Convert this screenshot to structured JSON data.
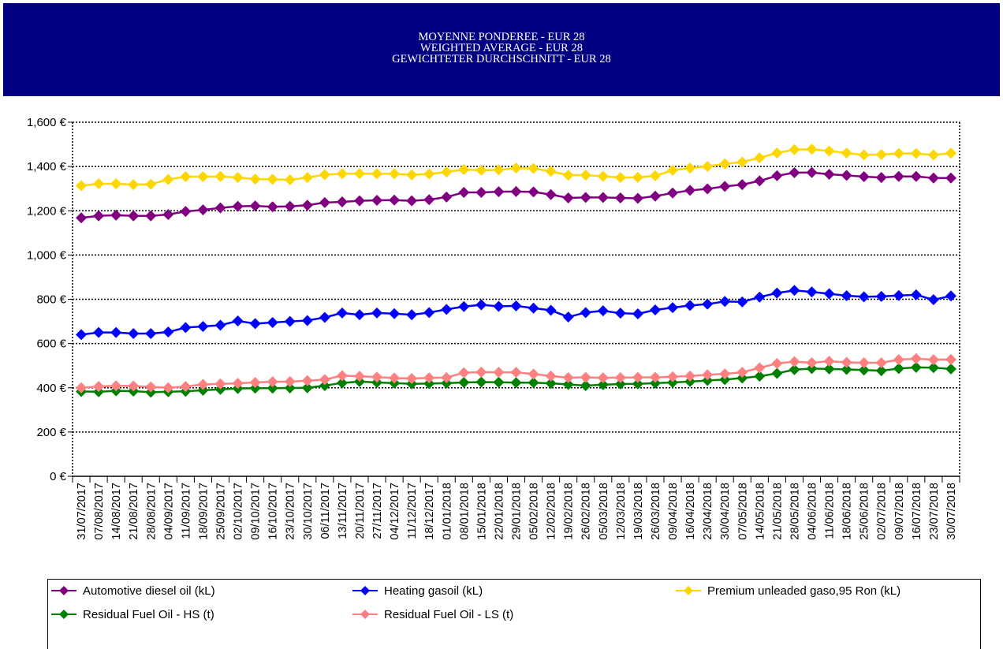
{
  "header": {
    "lines": [
      "MOYENNE PONDEREE - EUR 28",
      "WEIGHTED AVERAGE - EUR 28",
      "GEWICHTETER DURCHSCHNITT - EUR 28"
    ],
    "background": "#000080"
  },
  "chart_data": {
    "type": "line",
    "ylim": [
      0,
      1600
    ],
    "yticks": [
      0,
      200,
      400,
      600,
      800,
      1000,
      1200,
      1400,
      1600
    ],
    "ytick_labels": [
      "0 €",
      "200 €",
      "400 €",
      "600 €",
      "800 €",
      "1,000 €",
      "1,200 €",
      "1,400 €",
      "1,600 €"
    ],
    "grid": true,
    "legend_position": "bottom",
    "x": [
      "31/07/2017",
      "07/08/2017",
      "14/08/2017",
      "21/08/2017",
      "28/08/2017",
      "04/09/2017",
      "11/09/2017",
      "18/09/2017",
      "25/09/2017",
      "02/10/2017",
      "09/10/2017",
      "16/10/2017",
      "23/10/2017",
      "30/10/2017",
      "06/11/2017",
      "13/11/2017",
      "20/11/2017",
      "27/11/2017",
      "04/12/2017",
      "11/12/2017",
      "18/12/2017",
      "01/01/2018",
      "08/01/2018",
      "15/01/2018",
      "22/01/2018",
      "29/01/2018",
      "05/02/2018",
      "12/02/2018",
      "19/02/2018",
      "26/02/2018",
      "05/03/2018",
      "12/03/2018",
      "19/03/2018",
      "26/03/2018",
      "09/04/2018",
      "16/04/2018",
      "23/04/2018",
      "30/04/2018",
      "07/05/2018",
      "14/05/2018",
      "21/05/2018",
      "28/05/2018",
      "04/06/2018",
      "11/06/2018",
      "18/06/2018",
      "25/06/2018",
      "02/07/2018",
      "09/07/2018",
      "16/07/2018",
      "23/07/2018",
      "30/07/2018"
    ],
    "series": [
      {
        "name": "Automotive diesel oil (kL)",
        "color": "#800080",
        "values": [
          1168,
          1177,
          1180,
          1177,
          1177,
          1183,
          1197,
          1204,
          1213,
          1220,
          1222,
          1218,
          1220,
          1225,
          1237,
          1240,
          1245,
          1247,
          1248,
          1245,
          1250,
          1262,
          1283,
          1283,
          1286,
          1287,
          1285,
          1273,
          1258,
          1260,
          1260,
          1258,
          1256,
          1266,
          1280,
          1292,
          1299,
          1310,
          1318,
          1335,
          1358,
          1372,
          1373,
          1365,
          1360,
          1354,
          1350,
          1355,
          1355,
          1348,
          1348
        ]
      },
      {
        "name": "Heating gasoil (kL)",
        "color": "#0000ff",
        "values": [
          640,
          650,
          650,
          645,
          645,
          652,
          672,
          677,
          683,
          702,
          690,
          695,
          700,
          704,
          718,
          738,
          730,
          738,
          735,
          730,
          740,
          754,
          767,
          775,
          768,
          770,
          760,
          750,
          720,
          740,
          748,
          737,
          734,
          752,
          762,
          772,
          778,
          790,
          788,
          810,
          828,
          840,
          833,
          825,
          816,
          811,
          813,
          817,
          820,
          798,
          815
        ]
      },
      {
        "name": "Premium unleaded gaso,95 Ron (kL)",
        "color": "#ffd700",
        "values": [
          1313,
          1322,
          1322,
          1318,
          1320,
          1341,
          1354,
          1354,
          1355,
          1350,
          1343,
          1342,
          1340,
          1350,
          1363,
          1367,
          1368,
          1367,
          1367,
          1362,
          1366,
          1375,
          1386,
          1383,
          1385,
          1393,
          1391,
          1378,
          1361,
          1361,
          1356,
          1350,
          1351,
          1358,
          1383,
          1393,
          1400,
          1412,
          1420,
          1439,
          1461,
          1476,
          1478,
          1470,
          1461,
          1452,
          1454,
          1459,
          1459,
          1452,
          1460
        ]
      },
      {
        "name": "Residual Fuel Oil - HS (t)",
        "color": "#008000",
        "values": [
          383,
          382,
          386,
          385,
          380,
          382,
          384,
          389,
          393,
          397,
          398,
          398,
          399,
          400,
          410,
          422,
          428,
          424,
          421,
          418,
          419,
          421,
          424,
          426,
          425,
          423,
          423,
          420,
          415,
          410,
          414,
          417,
          418,
          421,
          424,
          428,
          433,
          437,
          444,
          452,
          465,
          482,
          487,
          485,
          483,
          480,
          477,
          487,
          492,
          491,
          485
        ]
      },
      {
        "name": "Residual Fuel Oil - LS (t)",
        "color": "#ff8080",
        "values": [
          400,
          406,
          409,
          408,
          404,
          400,
          406,
          415,
          418,
          420,
          424,
          427,
          428,
          432,
          437,
          455,
          452,
          448,
          444,
          442,
          445,
          446,
          468,
          471,
          470,
          470,
          462,
          453,
          446,
          447,
          445,
          446,
          447,
          447,
          450,
          453,
          459,
          463,
          470,
          490,
          510,
          518,
          513,
          520,
          515,
          513,
          513,
          527,
          532,
          527,
          528
        ]
      }
    ]
  },
  "legend": {
    "items": [
      {
        "label": "Automotive diesel oil (kL)",
        "color": "#800080"
      },
      {
        "label": "Heating gasoil (kL)",
        "color": "#0000ff"
      },
      {
        "label": "Premium unleaded gaso,95 Ron (kL)",
        "color": "#ffd700"
      },
      {
        "label": "Residual Fuel Oil - HS (t)",
        "color": "#008000"
      },
      {
        "label": "Residual Fuel Oil - LS (t)",
        "color": "#ff8080"
      }
    ]
  }
}
